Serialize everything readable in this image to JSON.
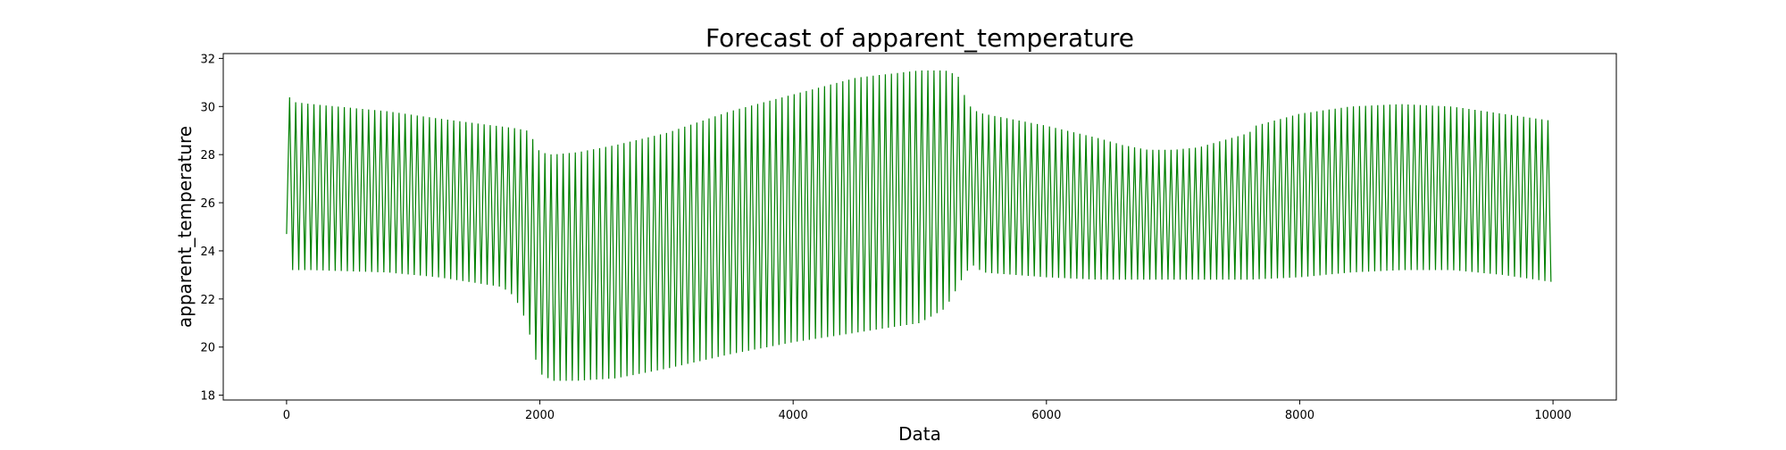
{
  "chart_data": {
    "type": "line",
    "title": "Forecast of apparent_temperature",
    "xlabel": "Data",
    "ylabel": "apparent_temperature",
    "xlim": [
      -500,
      10500
    ],
    "ylim": [
      17.8,
      32.2
    ],
    "x_ticks": [
      0,
      2000,
      4000,
      6000,
      8000,
      10000
    ],
    "y_ticks": [
      18,
      20,
      22,
      24,
      26,
      28,
      30,
      32
    ],
    "grid": false,
    "legend": "none",
    "series_color": "#008000",
    "oscillation_period": 48,
    "upper_envelope": {
      "x": [
        0,
        10,
        30,
        200,
        800,
        1200,
        1800,
        1900,
        1950,
        2000,
        2100,
        2300,
        2600,
        3000,
        3500,
        4000,
        4500,
        5000,
        5200,
        5300,
        5350,
        5400,
        5450,
        5500,
        6000,
        6400,
        6600,
        6800,
        7000,
        7200,
        7400,
        7600,
        7650,
        8000,
        8400,
        8800,
        9200,
        9600,
        10000
      ],
      "y": [
        24.7,
        30.8,
        30.2,
        30.1,
        29.8,
        29.5,
        29.1,
        29.0,
        28.6,
        28.1,
        28.0,
        28.1,
        28.4,
        28.9,
        29.8,
        30.5,
        31.2,
        31.5,
        31.5,
        31.3,
        30.5,
        30.0,
        29.8,
        29.7,
        29.2,
        28.7,
        28.4,
        28.2,
        28.2,
        28.3,
        28.6,
        28.9,
        29.2,
        29.7,
        30.0,
        30.1,
        30.0,
        29.7,
        29.4
      ]
    },
    "lower_envelope": {
      "x": [
        0,
        10,
        30,
        200,
        800,
        1200,
        1700,
        1800,
        1900,
        1950,
        2000,
        2100,
        2300,
        2600,
        3000,
        3500,
        4000,
        4500,
        5000,
        5200,
        5300,
        5350,
        5380,
        5420,
        5500,
        6000,
        6400,
        6800,
        7200,
        7600,
        8000,
        8400,
        8800,
        9200,
        9600,
        10000
      ],
      "y": [
        24.7,
        23.1,
        23.2,
        23.2,
        23.1,
        22.9,
        22.5,
        22.1,
        21.0,
        19.8,
        18.9,
        18.6,
        18.6,
        18.7,
        19.1,
        19.7,
        20.2,
        20.6,
        21.0,
        21.6,
        22.5,
        23.0,
        23.2,
        23.4,
        23.1,
        22.9,
        22.8,
        22.8,
        22.8,
        22.8,
        22.9,
        23.1,
        23.2,
        23.2,
        23.0,
        22.7
      ]
    }
  }
}
